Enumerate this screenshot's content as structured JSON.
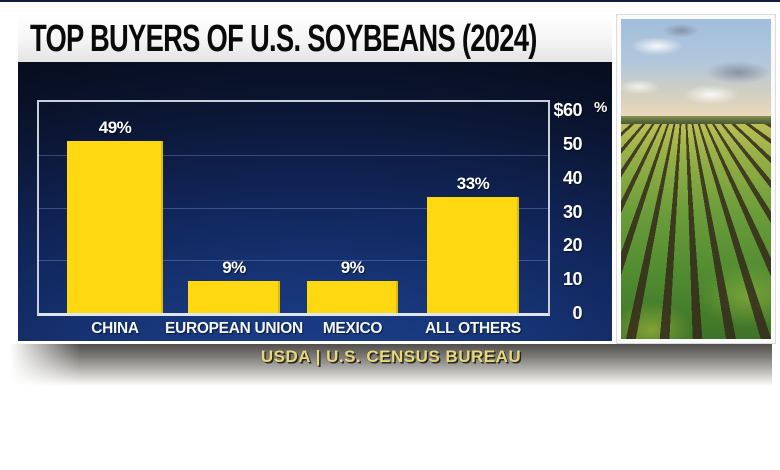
{
  "header": {
    "title": "TOP BUYERS OF U.S. SOYBEANS (2024)"
  },
  "footer": {
    "source": "USDA | U.S. CENSUS BUREAU"
  },
  "photo": {
    "description": "soybean field rows under blue sky"
  },
  "colors": {
    "bar_yellow": "#FED912",
    "panel_navy_top": "#0A142E",
    "panel_navy_bottom": "#1D4392",
    "footer_gold": "#E9D77C",
    "title_black": "#0A0A0A",
    "axis_white": "#FFFFFF"
  },
  "chart_data": {
    "type": "bar",
    "title": "TOP BUYERS OF U.S. SOYBEANS (2024)",
    "categories": [
      "CHINA",
      "EUROPEAN UNION",
      "MEXICO",
      "ALL OTHERS"
    ],
    "values": [
      49,
      9,
      9,
      33
    ],
    "value_labels": [
      "49%",
      "9%",
      "9%",
      "33%"
    ],
    "y_axis": {
      "side": "right",
      "tick_labels": [
        "$60",
        "50",
        "40",
        "30",
        "20",
        "10",
        "0"
      ],
      "tick_values": [
        60,
        50,
        40,
        30,
        20,
        10,
        0
      ],
      "unit_label": "%",
      "min": 0,
      "max": 60
    },
    "grid": "horizontal quarter lines",
    "legend": "none",
    "source": "USDA | U.S. CENSUS BUREAU"
  }
}
